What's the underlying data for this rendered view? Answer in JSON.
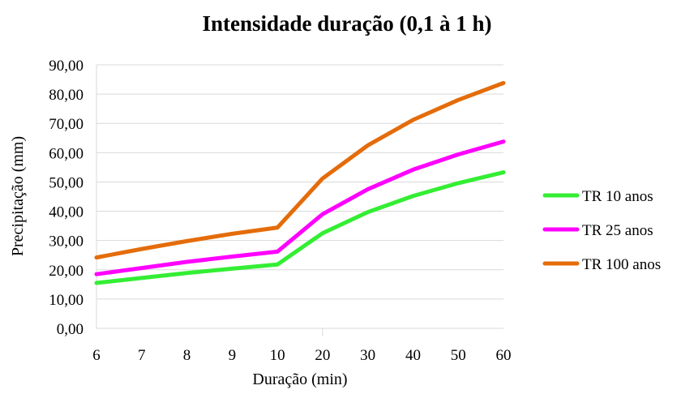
{
  "chart_data": {
    "type": "line",
    "title": "Intensidade duração (0,1 à 1 h)",
    "xlabel": "Duração (min)",
    "ylabel": "Precipitação (mm)",
    "categories": [
      "6",
      "7",
      "8",
      "9",
      "10",
      "20",
      "30",
      "40",
      "50",
      "60"
    ],
    "ylim": [
      0,
      90
    ],
    "yticks": [
      "0,00",
      "10,00",
      "20,00",
      "30,00",
      "40,00",
      "50,00",
      "60,00",
      "70,00",
      "80,00",
      "90,00"
    ],
    "grid": true,
    "legend_position": "right",
    "series": [
      {
        "name": "TR 10 anos",
        "color": "#33ee33",
        "values": [
          15.5,
          17.2,
          18.9,
          20.4,
          21.8,
          32.5,
          39.7,
          45.2,
          49.6,
          53.3
        ]
      },
      {
        "name": "TR 25 anos",
        "color": "#ff00ff",
        "values": [
          18.5,
          20.6,
          22.7,
          24.5,
          26.2,
          39.0,
          47.5,
          54.2,
          59.4,
          63.8
        ]
      },
      {
        "name": "TR 100 anos",
        "color": "#e46c0a",
        "values": [
          24.2,
          27.1,
          29.8,
          32.3,
          34.4,
          51.2,
          62.5,
          71.2,
          78.0,
          83.8
        ]
      }
    ]
  }
}
